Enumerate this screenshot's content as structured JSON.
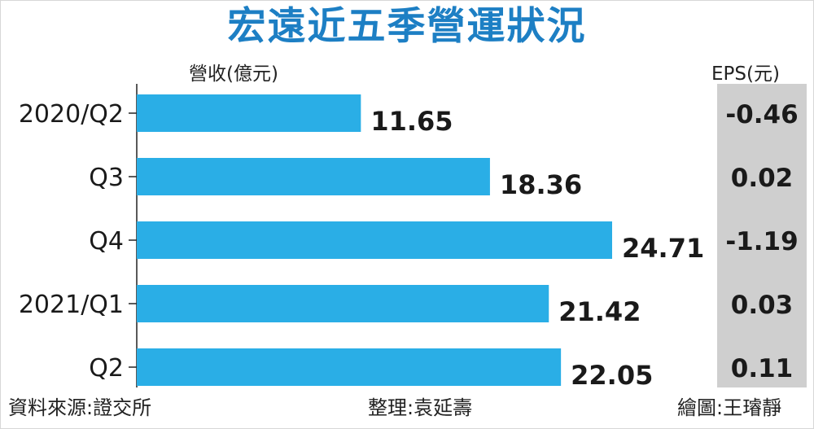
{
  "title": "宏遠近五季營運狀況",
  "revenue_unit": "營收(億元)",
  "eps_unit": "EPS(元)",
  "footer": {
    "source": "資料來源:證交所",
    "editor": "整理:袁延壽",
    "illustrator": "繪圖:王璿靜"
  },
  "colors": {
    "title": "#1d7fc4",
    "bar": "#2aaee6",
    "eps_panel": "#cfcfcf"
  },
  "chart_data": {
    "type": "bar",
    "orientation": "horizontal",
    "categories": [
      "2020/Q2",
      "Q3",
      "Q4",
      "2021/Q1",
      "Q2"
    ],
    "series": [
      {
        "values": [
          11.65,
          18.36,
          24.71,
          21.42,
          22.05
        ],
        "value_labels": [
          "11.65",
          "18.36",
          "24.71",
          "21.42",
          "22.05"
        ]
      }
    ],
    "eps": {
      "values": [
        -0.46,
        0.02,
        -1.19,
        0.03,
        0.11
      ],
      "labels": [
        "-0.46",
        "0.02",
        "-1.19",
        "0.03",
        "0.11"
      ]
    },
    "xlim": [
      0,
      24.71
    ],
    "grid": false,
    "legend": "none"
  }
}
